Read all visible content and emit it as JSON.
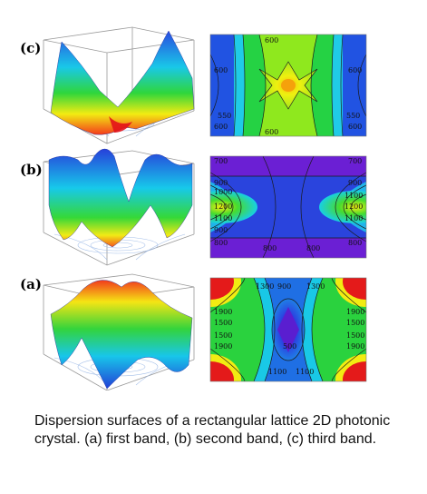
{
  "panels": [
    {
      "label": "(c)",
      "contour_labels": [
        "600",
        "600",
        "600",
        "600",
        "550",
        "550",
        "600",
        "600"
      ]
    },
    {
      "label": "(b)",
      "contour_labels": [
        "700",
        "700",
        "900",
        "1000",
        "1200",
        "1100",
        "900",
        "900",
        "1100",
        "1200",
        "1100",
        "800",
        "800",
        "800",
        "800"
      ]
    },
    {
      "label": "(a)",
      "contour_labels": [
        "1900",
        "1500",
        "1500",
        "1900",
        "1300",
        "1100",
        "900",
        "500",
        "1100",
        "1300",
        "1900",
        "1500",
        "1500",
        "1900"
      ]
    }
  ],
  "caption": "Dispersion surfaces of a rectangular lattice 2D photonic crystal. (a) first band, (b) second band, (c) third band.",
  "colors": {
    "red": "#e41a1a",
    "orange": "#ff9a00",
    "yellow": "#f3f10a",
    "green": "#1fd23a",
    "cyan": "#17d7e6",
    "blue": "#1a55e6",
    "violet": "#6a22d9"
  }
}
